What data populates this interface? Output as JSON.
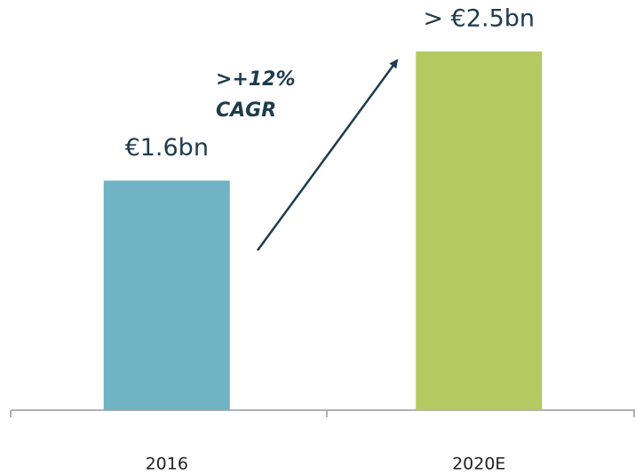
{
  "chart_data": {
    "type": "bar",
    "categories": [
      "2016",
      "2020E"
    ],
    "values": [
      1.6,
      2.5
    ],
    "value_labels": [
      "€1.6bn",
      "> €2.5bn"
    ],
    "colors": [
      "#6fb3c5",
      "#b5c862"
    ],
    "annotation": [
      ">+12%",
      "CAGR"
    ]
  }
}
